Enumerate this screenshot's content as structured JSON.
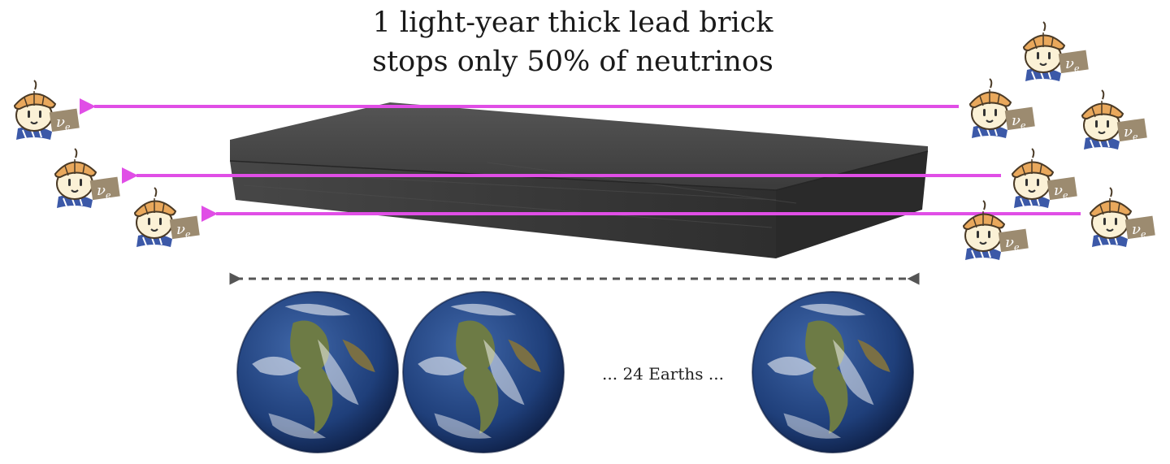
{
  "title": {
    "line1": "1 light-year thick lead brick",
    "line2": "stops only 50% of neutrinos"
  },
  "earths_caption": "... 24 Earths ...",
  "neutrino_symbol": {
    "base": "ν",
    "sub": "e"
  },
  "colors": {
    "arrow": "#e04ee6",
    "dimension_arrow": "#555555",
    "brick": "#3a3a3a",
    "mascot_hat": "#e9a85c",
    "mascot_face": "#fbf1d6",
    "mascot_tag": "#9c8b70",
    "earth_ocean": "#1f3f7a",
    "earth_land": "#6d7b45"
  },
  "icons": [
    "neutrino-mascot-icon",
    "earth-icon",
    "lead-brick"
  ]
}
